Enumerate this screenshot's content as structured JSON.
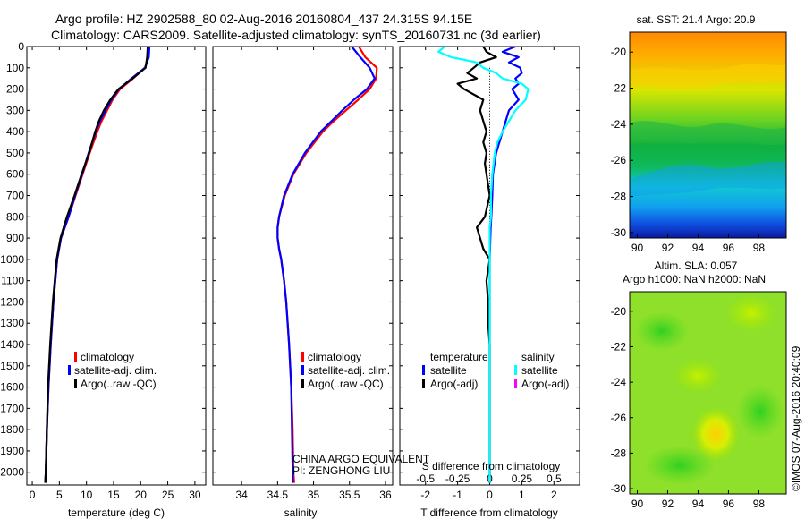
{
  "header": {
    "line1": "Argo profile: HZ 2902588_80 02-Aug-2016 20160804_437 24.315S 94.15E",
    "line2": "Climatology: CARS2009. Satellite-adjusted climatology: synTS_20160731.nc (3d earlier)"
  },
  "colors": {
    "climatology": "#ff0000",
    "satellite": "#0000ff",
    "argo": "#000000",
    "s_satellite": "#00ffff",
    "s_argo": "#ff00ff"
  },
  "chart_data": [
    {
      "id": "temperature",
      "type": "line",
      "xlabel": "temperature (deg C)",
      "xlim": [
        -1,
        32
      ],
      "xticks": [
        0,
        5,
        10,
        15,
        20,
        25,
        30
      ],
      "ylim": [
        2060,
        0
      ],
      "yticks": [
        0,
        100,
        200,
        300,
        400,
        500,
        600,
        700,
        800,
        900,
        1000,
        1100,
        1200,
        1300,
        1400,
        1500,
        1600,
        1700,
        1800,
        1900,
        2000
      ],
      "depth": [
        0,
        50,
        100,
        150,
        200,
        250,
        300,
        350,
        400,
        500,
        600,
        700,
        800,
        850,
        900,
        1000,
        1200,
        1400,
        1600,
        1800,
        2000,
        2050
      ],
      "series": [
        {
          "name": "climatology",
          "color": "#ff0000",
          "values": [
            21.5,
            21.4,
            20.8,
            18.6,
            16.2,
            14.8,
            13.8,
            12.8,
            12.0,
            10.6,
            9.3,
            8.0,
            6.7,
            6.0,
            5.3,
            4.6,
            3.9,
            3.4,
            3.0,
            2.7,
            2.5,
            2.4
          ]
        },
        {
          "name": "satellite-adj. clim.",
          "color": "#0000ff",
          "values": [
            21.6,
            21.5,
            20.8,
            18.3,
            16.0,
            14.6,
            13.5,
            12.5,
            11.7,
            10.4,
            9.2,
            7.9,
            6.7,
            6.0,
            5.3,
            4.6,
            3.9,
            3.4,
            3.0,
            2.7,
            2.5,
            2.4
          ]
        },
        {
          "name": "Argo(..raw -QC)",
          "color": "#000000",
          "values": [
            21.3,
            21.2,
            20.9,
            18.5,
            15.9,
            14.4,
            13.2,
            12.3,
            11.6,
            10.5,
            9.1,
            7.8,
            6.4,
            5.8,
            5.2,
            4.5,
            3.8,
            3.3,
            2.9,
            2.7,
            2.5,
            2.4
          ]
        }
      ],
      "legend": [
        "climatology",
        "satellite-adj. clim.",
        "Argo(..raw -QC)"
      ]
    },
    {
      "id": "salinity",
      "type": "line",
      "xlabel": "salinity",
      "xlim": [
        33.6,
        36.1
      ],
      "xticks": [
        34,
        34.5,
        35,
        35.5,
        36
      ],
      "ylim": [
        2060,
        0
      ],
      "depth": [
        0,
        50,
        100,
        150,
        200,
        250,
        300,
        350,
        400,
        500,
        600,
        700,
        800,
        850,
        900,
        950,
        1000,
        1100,
        1200,
        1400,
        1600,
        1800,
        2000,
        2050
      ],
      "series": [
        {
          "name": "climatology",
          "color": "#ff0000",
          "values": [
            35.63,
            35.72,
            35.88,
            35.87,
            35.78,
            35.62,
            35.45,
            35.28,
            35.13,
            34.9,
            34.72,
            34.6,
            34.52,
            34.5,
            34.5,
            34.52,
            34.55,
            34.59,
            34.62,
            34.66,
            34.69,
            34.71,
            34.72,
            34.73
          ]
        },
        {
          "name": "satellite-adj. clim.",
          "color": "#0000ff",
          "values": [
            35.53,
            35.65,
            35.78,
            35.85,
            35.74,
            35.56,
            35.4,
            35.25,
            35.1,
            34.88,
            34.71,
            34.59,
            34.52,
            34.5,
            34.5,
            34.52,
            34.55,
            34.59,
            34.62,
            34.66,
            34.69,
            34.7,
            34.71,
            34.71
          ]
        }
      ],
      "legend": [
        "climatology",
        "satellite-adj. clim.",
        "Argo(..raw -QC)"
      ],
      "notes": [
        "CHINA ARGO EQUIVALENT",
        "PI: ZENGHONG LIU"
      ]
    },
    {
      "id": "difference",
      "type": "line",
      "xlabel": "T difference from climatology",
      "xlim": [
        -2.8,
        2.8
      ],
      "xticks": [
        -2,
        -1,
        0,
        1,
        2
      ],
      "top_axis_label": "S difference from climatology",
      "top_ticks": [
        "-0.5",
        "-0.25",
        "0",
        "0.25",
        "0.5"
      ],
      "ylim": [
        2060,
        0
      ],
      "depth": [
        0,
        25,
        50,
        75,
        100,
        125,
        150,
        175,
        200,
        250,
        300,
        350,
        400,
        450,
        500,
        550,
        600,
        700,
        800,
        850,
        900,
        950,
        1000,
        1100,
        1200,
        1300,
        1400,
        1600,
        1800,
        2000,
        2050
      ],
      "series": [
        {
          "name": "T satellite",
          "color": "#0000ff",
          "values": [
            0.8,
            0.4,
            0.9,
            0.6,
            0.95,
            1.0,
            0.8,
            0.9,
            0.7,
            0.9,
            0.6,
            0.5,
            0.4,
            0.3,
            0.2,
            0.15,
            0.1,
            0.08,
            0.05,
            0.03,
            0.02,
            0.01,
            0.0,
            0.0,
            0.0,
            0.0,
            0.0,
            0.0,
            0.0,
            0.0,
            0.0
          ]
        },
        {
          "name": "T Argo(-adj)",
          "color": "#000000",
          "values": [
            -0.2,
            -0.1,
            0.2,
            -0.3,
            -0.5,
            -0.7,
            -0.4,
            -1.0,
            -0.8,
            -0.2,
            -0.3,
            -0.2,
            -0.1,
            -0.2,
            -0.1,
            -0.15,
            -0.1,
            0.0,
            -0.15,
            -0.4,
            -0.3,
            -0.2,
            0.0,
            -0.1,
            -0.05,
            -0.05,
            0.0,
            0.0,
            0.0,
            0.0,
            0.0
          ]
        },
        {
          "name": "S satellite",
          "color": "#00ffff",
          "values": [
            -0.35,
            -0.4,
            -0.3,
            -0.1,
            -0.05,
            0.05,
            0.1,
            0.25,
            0.3,
            0.28,
            0.2,
            0.15,
            0.1,
            0.06,
            0.04,
            0.03,
            0.02,
            0.01,
            0.01,
            0.0,
            0.0,
            0.0,
            0.0,
            0.0,
            0.0,
            0.0,
            0.0,
            0.0,
            0.0,
            0.0,
            0.0
          ]
        }
      ],
      "legend": {
        "temperature_title": "temperature",
        "salinity_title": "salinity",
        "t_items": [
          "satellite",
          "Argo(-adj)"
        ],
        "s_items": [
          "satellite",
          "Argo(-adj)"
        ]
      }
    },
    {
      "id": "sst_map",
      "type": "heatmap",
      "title": "sat. SST: 21.4  Argo: 20.9",
      "xticks": [
        90,
        92,
        94,
        96,
        98
      ],
      "yticks": [
        -20,
        -22,
        -24,
        -26,
        -28,
        -30
      ],
      "xlim": [
        89.5,
        99.8
      ],
      "ylim": [
        -30.3,
        -18.9
      ]
    },
    {
      "id": "sla_map",
      "type": "heatmap",
      "title_lines": [
        "Altim. SLA: 0.057",
        "Argo h1000: NaN h2000: NaN"
      ],
      "xticks": [
        90,
        92,
        94,
        96,
        98
      ],
      "yticks": [
        -20,
        -22,
        -24,
        -26,
        -28,
        -30
      ],
      "xlim": [
        89.5,
        99.8
      ],
      "ylim": [
        -30.3,
        -18.9
      ]
    }
  ],
  "footer_stamp": "©IMOS 07-Aug-2016 20:40:09"
}
